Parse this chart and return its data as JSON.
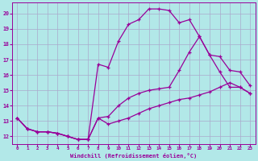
{
  "xlabel": "Windchill (Refroidissement éolien,°C)",
  "ylabel": "",
  "bg_color": "#b2e8e8",
  "grid_color": "#c8c8d8",
  "line_color": "#990099",
  "xlim": [
    -0.5,
    23.5
  ],
  "ylim": [
    11.5,
    20.7
  ],
  "xticks": [
    0,
    1,
    2,
    3,
    4,
    5,
    6,
    7,
    8,
    9,
    10,
    11,
    12,
    13,
    14,
    15,
    16,
    17,
    18,
    19,
    20,
    21,
    22,
    23
  ],
  "yticks": [
    12,
    13,
    14,
    15,
    16,
    17,
    18,
    19,
    20
  ],
  "hours": [
    0,
    1,
    2,
    3,
    4,
    5,
    6,
    7,
    8,
    9,
    10,
    11,
    12,
    13,
    14,
    15,
    16,
    17,
    18,
    19,
    20,
    21,
    22,
    23
  ],
  "line_top": [
    13.2,
    12.5,
    12.3,
    12.3,
    12.2,
    12.0,
    11.8,
    11.8,
    16.7,
    16.5,
    18.2,
    19.3,
    19.6,
    20.3,
    20.3,
    20.2,
    19.4,
    19.6,
    18.5,
    17.3,
    16.2,
    15.2,
    15.2,
    14.8
  ],
  "line_mid": [
    13.2,
    12.5,
    12.3,
    12.3,
    12.2,
    12.0,
    11.8,
    11.8,
    13.2,
    13.3,
    14.0,
    14.5,
    14.8,
    15.0,
    15.1,
    15.2,
    16.3,
    17.5,
    18.5,
    17.3,
    17.2,
    16.3,
    16.2,
    15.3
  ],
  "line_bot": [
    13.2,
    12.5,
    12.3,
    12.3,
    12.2,
    12.0,
    11.8,
    11.8,
    13.2,
    12.8,
    13.0,
    13.2,
    13.5,
    13.8,
    14.0,
    14.2,
    14.4,
    14.5,
    14.7,
    14.9,
    15.2,
    15.5,
    15.2,
    14.8
  ]
}
